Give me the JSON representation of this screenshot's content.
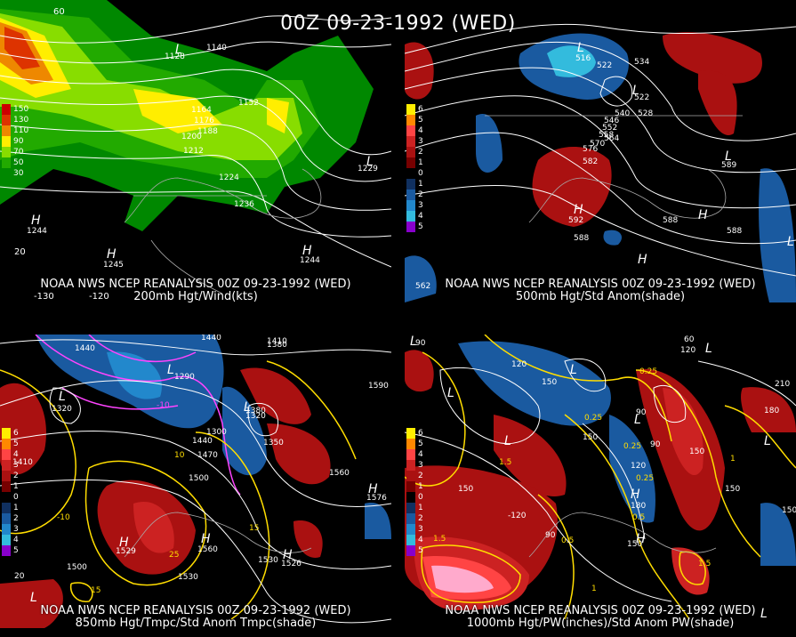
{
  "title": "00Z 09-23-1992 (WED)",
  "panels": [
    {
      "id": "top-left",
      "caption_line1": "NOAA NWS NCEP REANALYSIS 00Z 09-23-1992 (WED)",
      "caption_line2": "200mb Hgt/Wind(kts)",
      "legend": [
        {
          "label": "150",
          "color": "#cc0000"
        },
        {
          "label": "130",
          "color": "#dd3300"
        },
        {
          "label": "110",
          "color": "#ee8800"
        },
        {
          "label": "90",
          "color": "#ffee00"
        },
        {
          "label": "70",
          "color": "#88dd00"
        },
        {
          "label": "50",
          "color": "#22aa00"
        },
        {
          "label": "30",
          "color": "#008800"
        }
      ],
      "labels": [
        "1128",
        "1140",
        "1152",
        "1164",
        "1176",
        "1188",
        "1200",
        "1212",
        "1224",
        "1236",
        "1229",
        "1244",
        "1245",
        "1244"
      ],
      "axis": [
        "60",
        "-130",
        "-120",
        "20"
      ]
    },
    {
      "id": "top-right",
      "caption_line1": "NOAA NWS NCEP REANALYSIS 00Z 09-23-1992 (WED)",
      "caption_line2": "500mb Hgt/Std Anom(shade)",
      "legend": [
        {
          "label": "6",
          "color": "#ffee00"
        },
        {
          "label": "5",
          "color": "#ff8800"
        },
        {
          "label": "4",
          "color": "#ff4444"
        },
        {
          "label": "3",
          "color": "#cc2222"
        },
        {
          "label": "2",
          "color": "#aa1111"
        },
        {
          "label": "1",
          "color": "#770000"
        },
        {
          "label": "0",
          "color": "#000000"
        },
        {
          "label": "1",
          "color": "#103060"
        },
        {
          "label": "2",
          "color": "#1a5aa0"
        },
        {
          "label": "3",
          "color": "#2288cc"
        },
        {
          "label": "4",
          "color": "#33bbdd"
        },
        {
          "label": "5",
          "color": "#8800cc"
        }
      ],
      "labels": [
        "516",
        "522",
        "534",
        "522",
        "528",
        "540",
        "546",
        "552",
        "558",
        "564",
        "570",
        "576",
        "582",
        "592",
        "588",
        "588",
        "588",
        "589",
        "562"
      ]
    },
    {
      "id": "bottom-left",
      "caption_line1": "NOAA NWS NCEP REANALYSIS 00Z 09-23-1992 (WED)",
      "caption_line2": "850mb Hgt/Tmpc/Std Anom Tmpc(shade)",
      "legend": [
        {
          "label": "6",
          "color": "#ffee00"
        },
        {
          "label": "5",
          "color": "#ff8800"
        },
        {
          "label": "4",
          "color": "#ff4444"
        },
        {
          "label": "3",
          "color": "#cc2222"
        },
        {
          "label": "2",
          "color": "#aa1111"
        },
        {
          "label": "1",
          "color": "#770000"
        },
        {
          "label": "0",
          "color": "#000000"
        },
        {
          "label": "1",
          "color": "#103060"
        },
        {
          "label": "2",
          "color": "#1a5aa0"
        },
        {
          "label": "3",
          "color": "#2288cc"
        },
        {
          "label": "4",
          "color": "#33bbdd"
        },
        {
          "label": "5",
          "color": "#8800cc"
        }
      ],
      "labels": [
        "1380",
        "1410",
        "1440",
        "1440",
        "1290",
        "1320",
        "1350",
        "1380",
        "1300",
        "1440",
        "1470",
        "1410",
        "1500",
        "1560",
        "1590",
        "1530",
        "1500",
        "1530",
        "1529",
        "1560",
        "1526",
        "1576",
        "10",
        "-10",
        "15",
        "25",
        "15",
        "-10",
        "20"
      ]
    },
    {
      "id": "bottom-right",
      "caption_line1": "NOAA NWS NCEP REANALYSIS 00Z 09-23-1992 (WED)",
      "caption_line2": "1000mb Hgt/PW(inches)/Std Anom PW(shade)",
      "legend": [
        {
          "label": "6",
          "color": "#ffee00"
        },
        {
          "label": "5",
          "color": "#ff8800"
        },
        {
          "label": "4",
          "color": "#ff4444"
        },
        {
          "label": "3",
          "color": "#cc2222"
        },
        {
          "label": "2",
          "color": "#aa1111"
        },
        {
          "label": "1",
          "color": "#770000"
        },
        {
          "label": "0",
          "color": "#000000"
        },
        {
          "label": "1",
          "color": "#103060"
        },
        {
          "label": "2",
          "color": "#1a5aa0"
        },
        {
          "label": "3",
          "color": "#2288cc"
        },
        {
          "label": "4",
          "color": "#33bbdd"
        },
        {
          "label": "5",
          "color": "#8800cc"
        }
      ],
      "labels": [
        "90",
        "150",
        "120",
        "60",
        "120",
        "0.25",
        "0.25",
        "90",
        "0.25",
        "150",
        "180",
        "210",
        "150",
        "1.5",
        "-120",
        "90",
        "0.5",
        "0.5",
        "1.5",
        "150",
        "120",
        "1",
        "1",
        "1.5",
        "120"
      ]
    }
  ]
}
